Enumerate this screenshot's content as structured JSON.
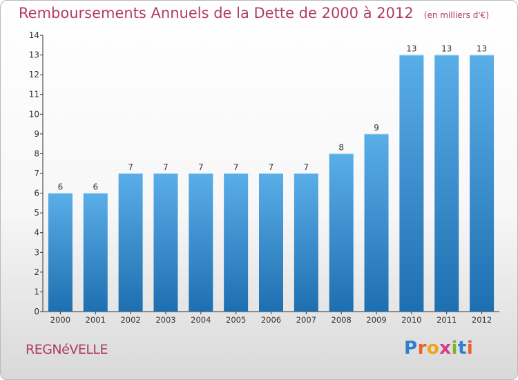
{
  "header": {
    "title": "Remboursements Annuels de la Dette de 2000 à 2012",
    "unit": "(en milliers d'€)"
  },
  "footer": {
    "commune": "REGNéVELLE",
    "logo_letters": [
      "P",
      "r",
      "o",
      "x",
      "i",
      "t",
      "i"
    ]
  },
  "colors": {
    "title": "#b03a6a",
    "bar_top": "#5aaee8",
    "bar_bottom": "#1e6fb0",
    "axis": "#333333"
  },
  "chart_data": {
    "type": "bar",
    "title": "Remboursements Annuels de la Dette de 2000 à 2012",
    "subtitle": "(en milliers d'€)",
    "categories": [
      "2000",
      "2001",
      "2002",
      "2003",
      "2004",
      "2005",
      "2006",
      "2007",
      "2008",
      "2009",
      "2010",
      "2011",
      "2012"
    ],
    "values": [
      6,
      6,
      7,
      7,
      7,
      7,
      7,
      7,
      8,
      9,
      13,
      13,
      13
    ],
    "data_labels": [
      "6",
      "6",
      "7",
      "7",
      "7",
      "7",
      "7",
      "7",
      "8",
      "9",
      "13",
      "13",
      "13"
    ],
    "yticks": [
      "0",
      "1",
      "2",
      "3",
      "4",
      "5",
      "6",
      "7",
      "8",
      "9",
      "10",
      "11",
      "12",
      "13",
      "14"
    ],
    "ylim": [
      0,
      14
    ],
    "xlabel": "",
    "ylabel": "",
    "grid": false,
    "legend": "none"
  }
}
